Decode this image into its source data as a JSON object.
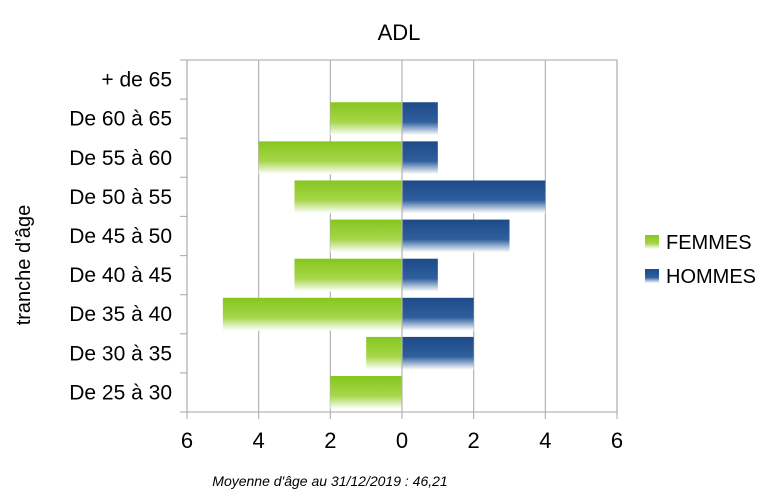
{
  "chart_data": {
    "type": "bar",
    "orientation": "horizontal",
    "title": "ADL",
    "ylabel": "tranche d'âge",
    "xlabel": "",
    "categories": [
      "+ de 65",
      "De 60 à 65",
      "De 55 à 60",
      "De 50 à 55",
      "De 45 à 50",
      "De 40 à 45",
      "De 35 à 40",
      "De 30 à 35",
      "De 25 à 30"
    ],
    "series": [
      {
        "name": "FEMMES",
        "values": [
          0,
          2,
          4,
          3,
          2,
          3,
          5,
          1,
          2
        ],
        "color": "#7dc31a",
        "direction": "left"
      },
      {
        "name": "HOMMES",
        "values": [
          0,
          1,
          1,
          4,
          3,
          1,
          2,
          2,
          0
        ],
        "color": "#1f4e8c",
        "direction": "right"
      }
    ],
    "xlim": [
      -6,
      6
    ],
    "xticks": [
      -6,
      -4,
      -2,
      0,
      2,
      4,
      6
    ],
    "xtick_labels": [
      "6",
      "4",
      "2",
      "0",
      "2",
      "4",
      "6"
    ],
    "grid": "vertical",
    "legend_position": "right",
    "footnote": "Moyenne d'âge au 31/12/2019 : 46,21"
  }
}
